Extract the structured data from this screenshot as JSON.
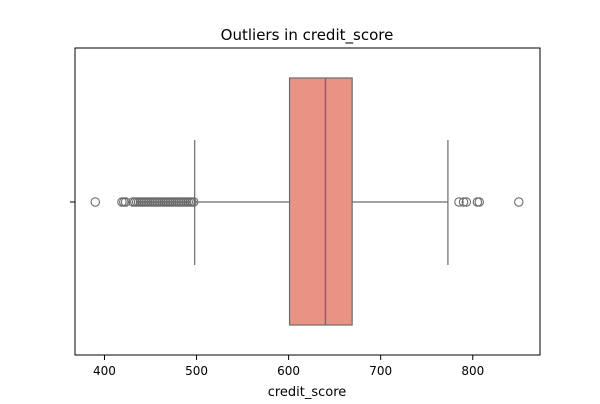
{
  "chart_data": {
    "type": "boxplot",
    "title": "Outliers in credit_score",
    "xlabel": "credit_score",
    "ylabel": "",
    "xlim": [
      368,
      873
    ],
    "x_ticks": [
      400,
      500,
      600,
      700,
      800
    ],
    "x_tick_labels": [
      "400",
      "500",
      "600",
      "700",
      "800"
    ],
    "orientation": "horizontal",
    "grid": false,
    "box": {
      "min_whisker": 498,
      "q1": 601,
      "median": 640,
      "q3": 669,
      "max_whisker": 773
    },
    "outliers": [
      390,
      419,
      421,
      423,
      431,
      433,
      435,
      437,
      439,
      441,
      443,
      445,
      447,
      449,
      451,
      453,
      455,
      457,
      459,
      461,
      463,
      465,
      467,
      469,
      471,
      473,
      475,
      477,
      479,
      481,
      483,
      485,
      487,
      489,
      491,
      493,
      495,
      497,
      785,
      790,
      793,
      805,
      807,
      850
    ],
    "colors": {
      "box_fill": "#ea9284",
      "line": "#6b6b6b",
      "axes": "#000000"
    }
  }
}
